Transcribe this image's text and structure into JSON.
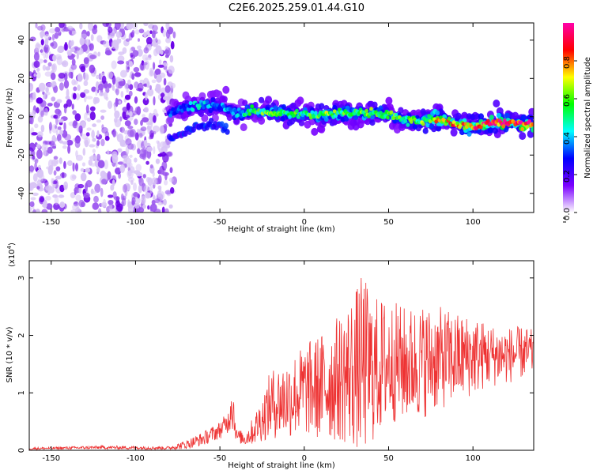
{
  "title": "C2E6.2025.259.01.44.G10",
  "chart_data": [
    {
      "type": "heatmap",
      "title": "C2E6.2025.259.01.44.G10",
      "xlabel": "Height of straight line (km)",
      "ylabel": "Frequency (Hz)",
      "xlim": [
        -163,
        136
      ],
      "ylim": [
        -50,
        49
      ],
      "xticks": [
        -150,
        -100,
        -50,
        0,
        50,
        100
      ],
      "yticks": [
        -40,
        -20,
        0,
        20,
        40
      ],
      "colorbar": {
        "label": "Normalized spectral amplitude",
        "range": [
          0,
          1
        ],
        "ticks": [
          "0.0",
          "0.2",
          "0.4",
          "0.6",
          "0.8"
        ],
        "colors": [
          "#ffffff",
          "#7b00ff",
          "#0000ff",
          "#00ffff",
          "#00ff00",
          "#ffff00",
          "#ff0000",
          "#ff00aa"
        ]
      },
      "noise_region_x": [
        -163,
        -77
      ],
      "ridge": {
        "x": [
          -80,
          -70,
          -60,
          -50,
          -40,
          -30,
          -20,
          -10,
          0,
          10,
          20,
          30,
          40,
          50,
          60,
          70,
          80,
          90,
          100,
          110,
          120,
          136
        ],
        "y": [
          2,
          5,
          6,
          6,
          2,
          3,
          2,
          2,
          1,
          1,
          2,
          2,
          2,
          1,
          -2,
          -2,
          -1,
          -4,
          -5,
          -3,
          -3,
          -4
        ],
        "peak_amplitude": [
          0.3,
          0.35,
          0.4,
          0.35,
          0.4,
          0.5,
          0.6,
          0.55,
          0.5,
          0.6,
          0.55,
          0.6,
          0.55,
          0.6,
          0.5,
          0.6,
          0.7,
          0.75,
          0.8,
          0.85,
          0.9,
          0.9
        ]
      },
      "secondary_branch": {
        "x": [
          -80,
          -70,
          -60,
          -50,
          -45
        ],
        "y": [
          -11,
          -8,
          -5,
          -4,
          -6
        ]
      }
    },
    {
      "type": "line",
      "xlabel": "Height of straight line (km)",
      "ylabel": "SNR (10 * v/v)",
      "y_multiplier": "(x10",
      "y_multiplier_exp": "4",
      "y_multiplier_close": ")",
      "xlim": [
        -163,
        136
      ],
      "ylim": [
        0,
        3.3
      ],
      "xticks": [
        -150,
        -100,
        -50,
        0,
        50,
        100
      ],
      "yticks": [
        0,
        1,
        2,
        3
      ],
      "color": "#ee3333",
      "envelope": {
        "x": [
          -163,
          -120,
          -80,
          -70,
          -60,
          -50,
          -45,
          -43,
          -40,
          -35,
          -30,
          -25,
          -20,
          -10,
          0,
          10,
          20,
          30,
          35,
          40,
          50,
          60,
          70,
          80,
          90,
          100,
          110,
          120,
          130,
          136
        ],
        "mean": [
          0.03,
          0.05,
          0.04,
          0.1,
          0.2,
          0.35,
          0.5,
          0.9,
          0.25,
          0.2,
          0.35,
          0.55,
          0.8,
          0.9,
          1.05,
          1.1,
          1.25,
          1.4,
          1.5,
          1.4,
          1.55,
          1.5,
          1.55,
          1.6,
          1.6,
          1.65,
          1.65,
          1.65,
          1.7,
          1.7
        ],
        "amplitude": [
          0.02,
          0.03,
          0.03,
          0.08,
          0.12,
          0.15,
          0.2,
          0.55,
          0.12,
          0.12,
          0.25,
          0.4,
          0.6,
          0.7,
          0.8,
          0.95,
          1.1,
          1.4,
          1.6,
          1.3,
          1.1,
          1.0,
          1.0,
          0.9,
          0.8,
          0.7,
          0.55,
          0.5,
          0.45,
          0.4
        ]
      }
    }
  ]
}
